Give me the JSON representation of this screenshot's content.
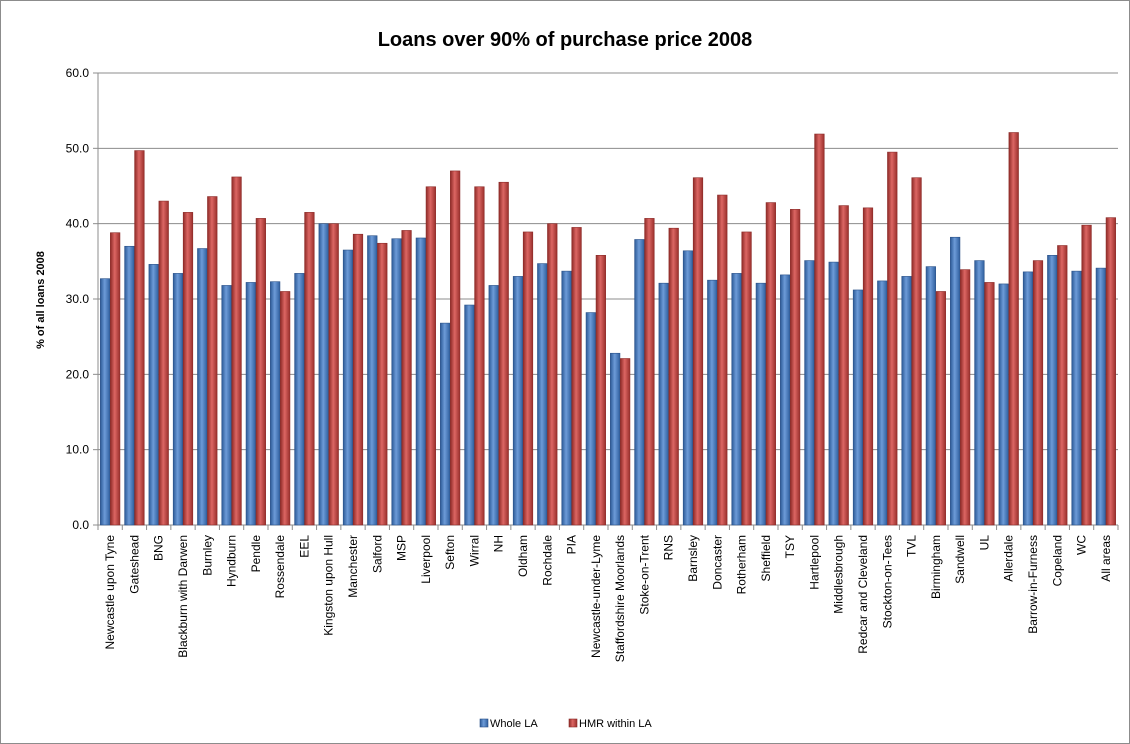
{
  "chart_data": {
    "type": "bar",
    "title": "Loans over 90% of purchase price 2008",
    "xlabel": "",
    "ylabel": "% of all loans 2008",
    "ylim": [
      0,
      60
    ],
    "yticks": [
      "0.0",
      "10.0",
      "20.0",
      "30.0",
      "40.0",
      "50.0",
      "60.0"
    ],
    "grid": true,
    "legend_position": "bottom",
    "categories": [
      "Newcastle upon Tyne",
      "Gateshead",
      "BNG",
      "Blackburn with Darwen",
      "Burnley",
      "Hyndburn",
      "Pendle",
      "Rossendale",
      "EEL",
      "Kingston upon Hull",
      "Manchester",
      "Salford",
      "MSP",
      "Liverpool",
      "Sefton",
      "Wirral",
      "NH",
      "Oldham",
      "Rochdale",
      "PIA",
      "Newcastle-under-Lyme",
      "Staffordshire Moorlands",
      "Stoke-on-Trent",
      "RNS",
      "Barnsley",
      "Doncaster",
      "Rotherham",
      "Sheffield",
      "TSY",
      "Hartlepool",
      "Middlesbrough",
      "Redcar and Cleveland",
      "Stockton-on-Tees",
      "TVL",
      "Birmingham",
      "Sandwell",
      "UL",
      "Allerdale",
      "Barrow-in-Furness",
      "Copeland",
      "WC",
      "All areas"
    ],
    "series": [
      {
        "name": "Whole LA",
        "color": "#4f81bd",
        "values": [
          32.7,
          37.0,
          34.6,
          33.4,
          36.7,
          31.8,
          32.2,
          32.3,
          33.4,
          40.0,
          36.5,
          38.4,
          38.0,
          38.1,
          26.8,
          29.2,
          31.8,
          33.0,
          34.7,
          33.7,
          28.2,
          22.8,
          37.9,
          32.1,
          36.4,
          32.5,
          33.4,
          32.1,
          33.2,
          35.1,
          34.9,
          31.2,
          32.4,
          33.0,
          34.3,
          38.2,
          35.1,
          32.0,
          33.6,
          35.8,
          33.7,
          34.1
        ]
      },
      {
        "name": "HMR within LA",
        "color": "#c0504d",
        "values": [
          38.8,
          49.7,
          43.0,
          41.5,
          43.6,
          46.2,
          40.7,
          31.0,
          41.5,
          40.0,
          38.6,
          37.4,
          39.1,
          44.9,
          47.0,
          44.9,
          45.5,
          38.9,
          40.0,
          39.5,
          35.8,
          22.1,
          40.7,
          39.4,
          46.1,
          43.8,
          38.9,
          42.8,
          41.9,
          51.9,
          42.4,
          42.1,
          49.5,
          46.1,
          31.0,
          33.9,
          32.2,
          52.1,
          35.1,
          37.1,
          39.8,
          40.8
        ]
      }
    ]
  }
}
